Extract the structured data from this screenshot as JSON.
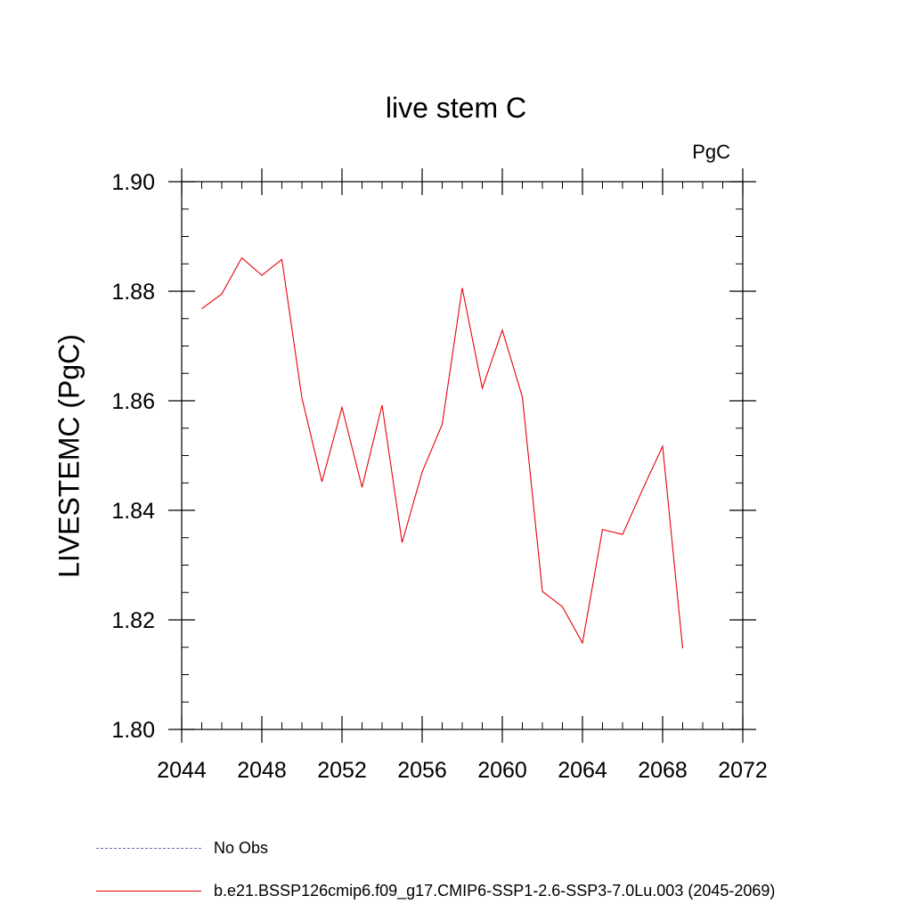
{
  "chart_data": {
    "type": "line",
    "title": "live stem C",
    "units_label": "PgC",
    "ylabel": "LIVESTEMC  (PgC)",
    "xlabel": "",
    "xlim": [
      2044,
      2072
    ],
    "ylim": [
      1.8,
      1.9
    ],
    "x_ticks": [
      "2044",
      "2048",
      "2052",
      "2056",
      "2060",
      "2064",
      "2068",
      "2072"
    ],
    "x_tick_values": [
      2044,
      2048,
      2052,
      2056,
      2060,
      2064,
      2068,
      2072
    ],
    "y_ticks": [
      "1.80",
      "1.82",
      "1.84",
      "1.86",
      "1.88",
      "1.90"
    ],
    "y_tick_values": [
      1.8,
      1.82,
      1.84,
      1.86,
      1.88,
      1.9
    ],
    "x_minor_step": 1,
    "y_minor_step": 0.005,
    "grid": false,
    "legend_position": "bottom-left, below plot",
    "series": [
      {
        "name": "b.e21.BSSP126cmip6.f09_g17.CMIP6-SSP1-2.6-SSP3-7.0Lu.003 (2045-2069)",
        "color": "#e8000b",
        "style": "solid",
        "x": [
          2045,
          2046,
          2047,
          2048,
          2049,
          2050,
          2051,
          2052,
          2053,
          2054,
          2055,
          2056,
          2057,
          2058,
          2059,
          2060,
          2061,
          2062,
          2063,
          2064,
          2065,
          2066,
          2067,
          2068,
          2069
        ],
        "values": [
          1.8768,
          1.8795,
          1.8861,
          1.8829,
          1.8858,
          1.8605,
          1.8452,
          1.8588,
          1.8442,
          1.8592,
          1.8341,
          1.847,
          1.8557,
          1.8806,
          1.8623,
          1.8729,
          1.8607,
          1.8252,
          1.8224,
          1.8158,
          1.8365,
          1.8356,
          1.8438,
          1.8517,
          1.8148
        ]
      }
    ],
    "legend": [
      {
        "label": "No Obs",
        "color": "#6b5fb5",
        "style": "dashed"
      },
      {
        "label": "b.e21.BSSP126cmip6.f09_g17.CMIP6-SSP1-2.6-SSP3-7.0Lu.003 (2045-2069)",
        "color": "#e8000b",
        "style": "solid"
      }
    ]
  }
}
